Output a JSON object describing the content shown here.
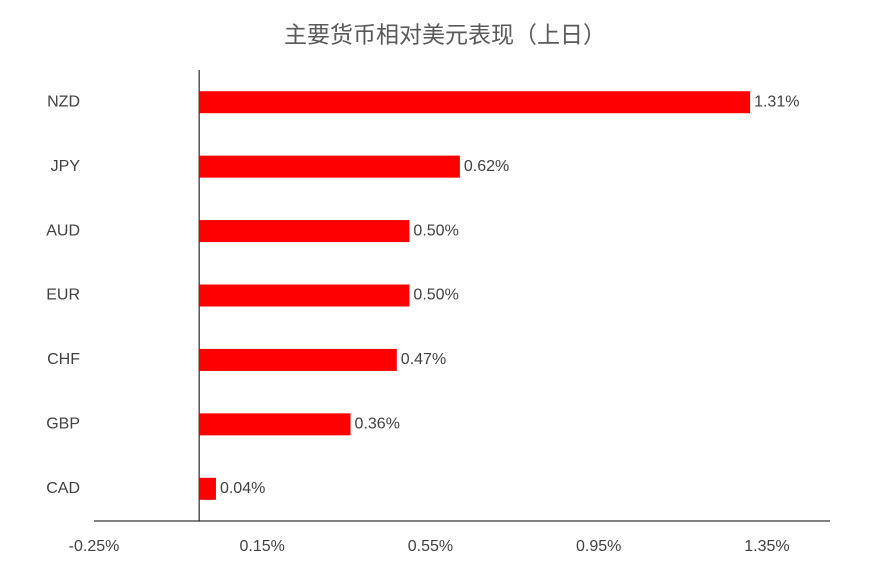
{
  "chart_data": {
    "type": "bar",
    "orientation": "horizontal",
    "title": "主要货币相对美元表现（上日）",
    "categories": [
      "NZD",
      "JPY",
      "AUD",
      "EUR",
      "CHF",
      "GBP",
      "CAD"
    ],
    "values": [
      1.31,
      0.62,
      0.5,
      0.5,
      0.47,
      0.36,
      0.04
    ],
    "value_labels": [
      "1.31%",
      "0.62%",
      "0.50%",
      "0.50%",
      "0.47%",
      "0.36%",
      "0.04%"
    ],
    "color": "#ff0000",
    "xlim": [
      -0.25,
      1.5
    ],
    "xticks": [
      {
        "value": -0.25,
        "label": "-0.25%"
      },
      {
        "value": 0.15,
        "label": "0.15%"
      },
      {
        "value": 0.55,
        "label": "0.55%"
      },
      {
        "value": 0.95,
        "label": "0.95%"
      },
      {
        "value": 1.35,
        "label": "1.35%"
      }
    ],
    "grid": false
  }
}
